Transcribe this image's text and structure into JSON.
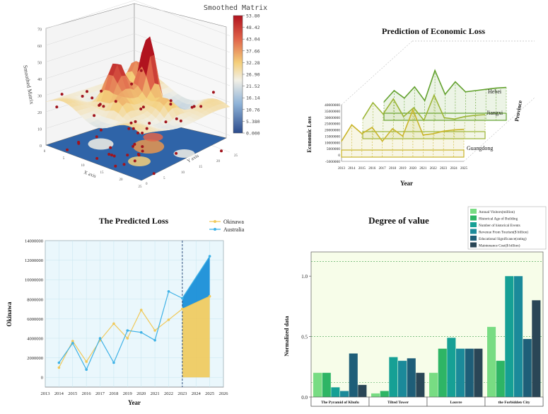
{
  "chart_data": [
    {
      "type": "surface",
      "title": "Smoothed Matrix",
      "zlabel": "Smoothed Matrix",
      "z_ticks": [
        "0",
        "10",
        "20",
        "30",
        "40",
        "50",
        "60",
        "70"
      ],
      "x_axis_label": "X axis",
      "y_axis_label": "Y axis",
      "x_ticks": [
        "0",
        "5",
        "10",
        "15",
        "20",
        "25"
      ],
      "y_ticks": [
        "0",
        "5",
        "10",
        "15",
        "20",
        "25"
      ],
      "colorbar_ticks": [
        "53.80",
        "48.42",
        "43.04",
        "37.66",
        "32.28",
        "26.90",
        "21.52",
        "16.14",
        "10.76",
        "5.380",
        "0.000"
      ],
      "colorbar_range": [
        0,
        53.8
      ]
    },
    {
      "type": "line",
      "title": "Prediction of Economic Loss",
      "ylabel": "Economic Loss",
      "xlabel": "Year",
      "zlabel": "Province",
      "y_ticks": [
        "40000000",
        "35000000",
        "30000000",
        "25000000",
        "20000000",
        "15000000",
        "10000000",
        "5000000",
        "0",
        "-5000000"
      ],
      "x_ticks": [
        "2013",
        "2014",
        "2015",
        "2016",
        "2017",
        "2018",
        "2019",
        "2020",
        "2021",
        "2022",
        "2023",
        "2024",
        "2025"
      ],
      "ylim": [
        -5000000,
        40000000
      ],
      "series": [
        {
          "name": "Guangdong",
          "color": "#c9b52a",
          "values": [
            11000000,
            24000000,
            17000000,
            22000000,
            11000000,
            21000000,
            15000000,
            36000000,
            16000000,
            17000000,
            19000000,
            20000000,
            20500000
          ]
        },
        {
          "name": "Jiangxi",
          "color": "#9bb536",
          "values": [
            14000000,
            27000000,
            18000000,
            30000000,
            16000000,
            23000000,
            13000000,
            33000000,
            15000000,
            14000000,
            16000000,
            17000000,
            17500000
          ]
        },
        {
          "name": "Hebei",
          "color": "#62a12e",
          "values": [
            13000000,
            22000000,
            16000000,
            25000000,
            14000000,
            38000000,
            19000000,
            29000000,
            21000000,
            22000000,
            23000000,
            24000000,
            24500000
          ]
        }
      ]
    },
    {
      "type": "line",
      "title": "The Predicted Loss",
      "xlabel": "Year",
      "ylabel": "Okinawa",
      "xlim": [
        2013,
        2026
      ],
      "ylim": [
        -1000000,
        14000000
      ],
      "x_ticks": [
        "2013",
        "2014",
        "2015",
        "2016",
        "2017",
        "2018",
        "2019",
        "2020",
        "2021",
        "2022",
        "2023",
        "2024",
        "2025",
        "2026"
      ],
      "y_ticks": [
        "0",
        "2000000",
        "4000000",
        "6000000",
        "8000000",
        "10000000",
        "12000000",
        "14000000"
      ],
      "forecast_start": 2023,
      "series": [
        {
          "name": "Okinawa",
          "color": "#f0c95a",
          "x": [
            2014,
            2015,
            2016,
            2017,
            2018,
            2019,
            2020,
            2021,
            2022,
            2023,
            2025
          ],
          "values": [
            1000000,
            3700000,
            1600000,
            3800000,
            5500000,
            4000000,
            6900000,
            4800000,
            5900000,
            7000000,
            8300000
          ]
        },
        {
          "name": "Australia",
          "color": "#3fb2e6",
          "x": [
            2014,
            2015,
            2016,
            2017,
            2018,
            2019,
            2020,
            2021,
            2022,
            2023,
            2025
          ],
          "values": [
            1500000,
            3500000,
            800000,
            4000000,
            1500000,
            4800000,
            4600000,
            3800000,
            8800000,
            8100000,
            12400000
          ]
        }
      ]
    },
    {
      "type": "bar",
      "title": "Degree of value",
      "ylabel": "Normalized data",
      "ylim": [
        0,
        1.2
      ],
      "y_ticks": [
        "0.0",
        "0.5",
        "1.0"
      ],
      "categories": [
        "The Pyramid of Khufu",
        "Tilted Tower",
        "Louvre",
        "the Forbidden City"
      ],
      "series": [
        {
          "name": "Annual Visitors(million)",
          "color": "#78dc83",
          "values": [
            0.2,
            0.03,
            0.2,
            0.58
          ]
        },
        {
          "name": "Historical Age of Building",
          "color": "#2eb565",
          "values": [
            0.2,
            0.05,
            0.4,
            0.3
          ]
        },
        {
          "name": "Number of historical Events",
          "color": "#16a095",
          "values": [
            0.08,
            0.33,
            0.49,
            1.0
          ]
        },
        {
          "name": "Revenue From Tourism($ billion)",
          "color": "#1b8a9a",
          "values": [
            0.05,
            0.3,
            0.4,
            1.0
          ]
        },
        {
          "name": "Educational Significance(rating)",
          "color": "#1e5e78",
          "values": [
            0.36,
            0.32,
            0.4,
            0.48
          ]
        },
        {
          "name": "Maintenance Cost($ billion)",
          "color": "#2a4656",
          "values": [
            0.1,
            0.2,
            0.4,
            0.8
          ]
        }
      ]
    }
  ]
}
